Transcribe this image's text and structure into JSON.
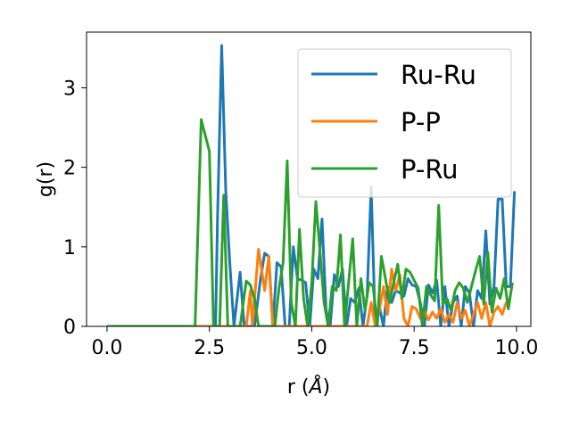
{
  "chart_data": {
    "type": "line",
    "xlabel": "r (",
    "xlabel_unit": "Å",
    "xlabel_close": ")",
    "ylabel": "g(r)",
    "xlim": [
      -0.5,
      10.35
    ],
    "ylim": [
      0,
      3.7
    ],
    "xticks": [
      0.0,
      2.5,
      5.0,
      7.5,
      10.0
    ],
    "xtick_labels": [
      "0.0",
      "2.5",
      "5.0",
      "7.5",
      "10.0"
    ],
    "yticks": [
      0,
      1,
      2,
      3
    ],
    "ytick_labels": [
      "0",
      "1",
      "2",
      "3"
    ],
    "grid": false,
    "legend_position": "top-right",
    "series": [
      {
        "name": "Ru-Ru",
        "color": "#1f77b4",
        "x": [
          0,
          2.55,
          2.65,
          2.7,
          2.8,
          2.9,
          3.0,
          3.1,
          3.25,
          3.35,
          3.45,
          3.6,
          3.75,
          3.85,
          3.95,
          4.05,
          4.15,
          4.25,
          4.35,
          4.45,
          4.55,
          4.65,
          4.75,
          4.85,
          4.95,
          5.05,
          5.15,
          5.25,
          5.35,
          5.45,
          5.55,
          5.65,
          5.75,
          5.85,
          5.95,
          6.05,
          6.15,
          6.25,
          6.35,
          6.45,
          6.55,
          6.65,
          6.75,
          6.85,
          6.95,
          7.05,
          7.15,
          7.25,
          7.35,
          7.45,
          7.55,
          7.65,
          7.75,
          7.85,
          7.95,
          8.05,
          8.15,
          8.25,
          8.35,
          8.45,
          8.55,
          8.65,
          8.75,
          8.85,
          8.95,
          9.05,
          9.15,
          9.25,
          9.35,
          9.45,
          9.55,
          9.65,
          9.75,
          9.85,
          9.95
        ],
        "y": [
          0,
          0,
          0,
          1.4,
          3.53,
          1.7,
          0.78,
          0,
          0.68,
          0,
          0,
          0,
          0.6,
          0.92,
          0.88,
          0,
          0.8,
          0.75,
          0,
          0,
          1.0,
          0.6,
          0.58,
          0.55,
          0,
          0.72,
          0.6,
          1.35,
          0.2,
          0,
          0.65,
          0.5,
          0.72,
          0,
          0.35,
          0.3,
          0.48,
          0,
          0.38,
          1.75,
          0,
          0.25,
          0,
          0.5,
          0.3,
          0.45,
          0.42,
          0.38,
          0.6,
          0.52,
          0.5,
          0.3,
          0,
          0.52,
          0.42,
          0.58,
          0,
          0.5,
          0,
          0.3,
          0.38,
          0,
          0.5,
          0.42,
          0,
          0.45,
          0.35,
          1.2,
          0.28,
          0.5,
          1.6,
          1.6,
          0.5,
          0.5,
          1.7
        ]
      },
      {
        "name": "P-P",
        "color": "#ff7f0e",
        "x": [
          0,
          3.4,
          3.5,
          3.55,
          3.7,
          3.85,
          3.95,
          4.05,
          4.15,
          4.25,
          4.35,
          4.45,
          4.55,
          4.65,
          4.75,
          4.85,
          4.95,
          5.05,
          5.15,
          5.25,
          5.35,
          5.45,
          5.55,
          5.65,
          5.75,
          5.85,
          5.95,
          6.05,
          6.15,
          6.25,
          6.35,
          6.45,
          6.55,
          6.65,
          6.75,
          6.85,
          6.95,
          7.05,
          7.15,
          7.25,
          7.35,
          7.45,
          7.55,
          7.65,
          7.75,
          7.85,
          7.95,
          8.05,
          8.15,
          8.25,
          8.35,
          8.45,
          8.55,
          8.65,
          8.75,
          8.85,
          8.95,
          9.05,
          9.15,
          9.25,
          9.35,
          9.45,
          9.55,
          9.65,
          9.75,
          9.85
        ],
        "y": [
          0,
          0,
          0.45,
          0,
          0.97,
          0.45,
          0.88,
          0,
          0,
          0,
          0,
          0,
          0,
          0,
          0,
          0,
          0,
          0,
          0,
          0,
          0,
          0,
          0,
          0,
          0,
          0,
          0,
          0,
          0,
          0,
          0,
          0.3,
          0,
          0.2,
          0.5,
          0.15,
          0.72,
          0.45,
          0.65,
          0.1,
          0,
          0.25,
          0.22,
          0.1,
          0.2,
          0.08,
          0.18,
          0.1,
          0.22,
          0.05,
          0.15,
          0.05,
          0.3,
          0.1,
          0.2,
          0,
          0.15,
          0.3,
          0.1,
          0.3,
          0,
          0.18,
          0.25,
          0.15,
          0.3,
          0.28
        ]
      },
      {
        "name": "P-Ru",
        "color": "#2ca02c",
        "x": [
          0,
          2.15,
          2.3,
          2.5,
          2.6,
          2.75,
          2.85,
          2.95,
          3.05,
          3.15,
          3.25,
          3.4,
          3.5,
          3.6,
          3.7,
          3.8,
          3.9,
          4.0,
          4.1,
          4.2,
          4.3,
          4.4,
          4.5,
          4.6,
          4.7,
          4.8,
          4.9,
          5.0,
          5.1,
          5.2,
          5.3,
          5.4,
          5.5,
          5.6,
          5.7,
          5.8,
          5.9,
          6.0,
          6.1,
          6.2,
          6.3,
          6.4,
          6.5,
          6.6,
          6.7,
          6.8,
          6.9,
          7.0,
          7.1,
          7.2,
          7.3,
          7.4,
          7.5,
          7.6,
          7.7,
          7.8,
          7.9,
          8.0,
          8.1,
          8.2,
          8.3,
          8.4,
          8.5,
          8.6,
          8.7,
          8.8,
          8.9,
          9.0,
          9.1,
          9.2,
          9.3,
          9.4,
          9.5,
          9.6,
          9.7,
          9.8,
          9.9
        ],
        "y": [
          0,
          0,
          2.6,
          2.2,
          0,
          0,
          1.65,
          0,
          0,
          0,
          0,
          0.57,
          0.52,
          0.35,
          0,
          0,
          0,
          0,
          0,
          0.48,
          0.8,
          2.08,
          0.3,
          0,
          1.22,
          0.35,
          0,
          0.55,
          1.57,
          0.95,
          0.3,
          0,
          0.5,
          0.45,
          1.15,
          0,
          0.55,
          1.1,
          0,
          0.6,
          0.2,
          0.55,
          0.5,
          0,
          0.88,
          0.6,
          0.3,
          0.55,
          0.78,
          0.35,
          0.72,
          0.68,
          0.58,
          0.48,
          0,
          0.5,
          0.4,
          0.32,
          1.52,
          0.28,
          0.35,
          0.2,
          0.45,
          0.55,
          0.48,
          0.3,
          0.5,
          0.7,
          0.88,
          0.28,
          0.93,
          0.18,
          0.48,
          0.35,
          0.6,
          0.22,
          0.55
        ]
      }
    ]
  }
}
